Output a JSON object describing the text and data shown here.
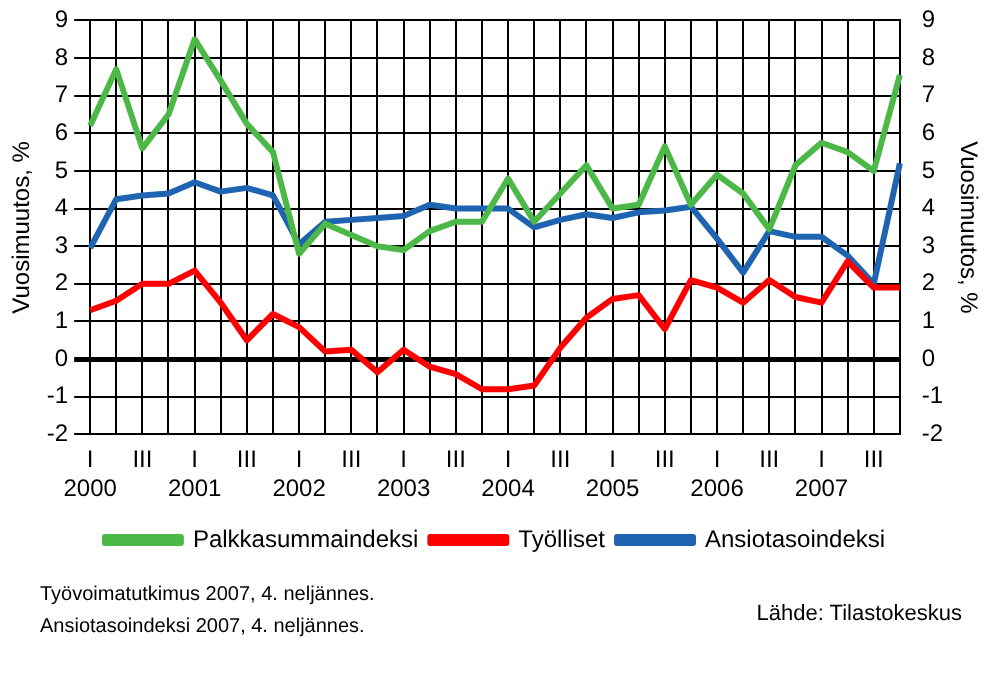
{
  "chart_data": {
    "type": "line",
    "categories": [
      "I\n2000",
      null,
      "III",
      null,
      "I\n2001",
      null,
      "III",
      null,
      "I\n2002",
      null,
      "III",
      null,
      "I\n2003",
      null,
      "III",
      null,
      "I\n2004",
      null,
      "III",
      null,
      "I\n2005",
      null,
      "III",
      null,
      "I\n2006",
      null,
      "III",
      null,
      "I\n2007",
      null,
      "III",
      null
    ],
    "series": [
      {
        "name": "Palkkasummaindeksi",
        "color": "#4cb848",
        "values": [
          6.2,
          7.7,
          5.6,
          6.5,
          8.5,
          7.4,
          6.25,
          5.5,
          2.8,
          3.6,
          3.3,
          3.0,
          2.9,
          3.4,
          3.65,
          3.65,
          4.8,
          3.65,
          4.4,
          5.15,
          4.0,
          4.1,
          5.65,
          4.1,
          4.9,
          4.4,
          3.45,
          5.15,
          5.75,
          5.5,
          5.0,
          7.55
        ]
      },
      {
        "name": "Työlliset",
        "color": "#ff0000",
        "values": [
          1.3,
          1.55,
          2.0,
          2.0,
          2.35,
          1.5,
          0.5,
          1.2,
          0.85,
          0.2,
          0.25,
          -0.35,
          0.25,
          -0.2,
          -0.4,
          -0.8,
          -0.8,
          -0.7,
          0.3,
          1.1,
          1.6,
          1.7,
          0.8,
          2.1,
          1.9,
          1.5,
          2.1,
          1.65,
          1.5,
          2.6,
          1.9,
          1.9
        ]
      },
      {
        "name": "Ansiotasoindeksi",
        "color": "#1f64b0",
        "values": [
          2.95,
          4.25,
          4.35,
          4.4,
          4.7,
          4.45,
          4.55,
          4.35,
          3.05,
          3.65,
          3.7,
          3.75,
          3.8,
          4.1,
          4.0,
          4.0,
          4.0,
          3.5,
          3.7,
          3.85,
          3.75,
          3.9,
          3.95,
          4.05,
          3.2,
          2.3,
          3.4,
          3.25,
          3.25,
          2.75,
          2.0,
          5.2
        ]
      }
    ],
    "ylabel": "Vuosimuutos, %",
    "y2label": "Vuosimuutos, %",
    "ylim": [
      -2,
      9
    ],
    "yticks": [
      -2,
      -1,
      0,
      1,
      2,
      3,
      4,
      5,
      6,
      7,
      8,
      9
    ],
    "y2lim": [
      -2,
      9
    ],
    "y2ticks": [
      -2,
      -1,
      0,
      1,
      2,
      3,
      4,
      5,
      6,
      7,
      8,
      9
    ],
    "grid": true,
    "legend": "bottom",
    "marker": "none",
    "line_style": "solid",
    "annotations": [
      "Työvoimatutkimus 2007, 4. neljännes.",
      "Ansiotasoindeksi 2007, 4. neljännes.",
      "Lähde: Tilastokeskus"
    ]
  }
}
